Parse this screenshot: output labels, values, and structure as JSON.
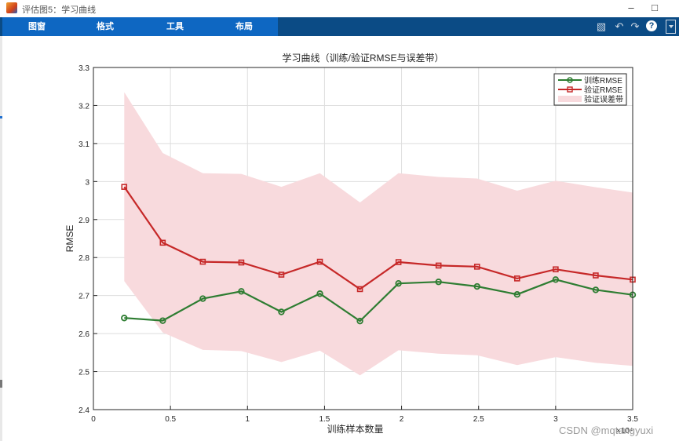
{
  "window": {
    "title": "评估图5：学习曲线"
  },
  "menu_tabs": [
    "图窗",
    "格式",
    "工具",
    "布局"
  ],
  "toolbar_icons": [
    "save-icon",
    "undo-icon",
    "redo-icon",
    "help-icon",
    "dropdown-icon"
  ],
  "colors": {
    "toolstrip": "#0b4b85",
    "tabs": "#0e67c2",
    "train": "#2e7d32",
    "val": "#c62828",
    "band": "#f8dadd"
  },
  "chart_data": {
    "type": "line",
    "title": "学习曲线（训练/验证RMSE与误差带）",
    "xlabel": "训练样本数量",
    "ylabel": "RMSE",
    "x_exponent_label": "×10⁴",
    "xlim": [
      0,
      3.5
    ],
    "ylim": [
      2.4,
      3.3
    ],
    "xticks": [
      0,
      0.5,
      1,
      1.5,
      2,
      2.5,
      3,
      3.5
    ],
    "xtick_labels": [
      "0",
      "0.5",
      "1",
      "1.5",
      "2",
      "2.5",
      "3",
      "3.5"
    ],
    "yticks": [
      2.4,
      2.5,
      2.6,
      2.7,
      2.8,
      2.9,
      3.0,
      3.1,
      3.2,
      3.3
    ],
    "ytick_labels": [
      "2.4",
      "2.5",
      "2.6",
      "2.7",
      "2.8",
      "2.9",
      "3",
      "3.1",
      "3.2",
      "3.3"
    ],
    "grid": true,
    "legend_position": "top-right",
    "x": [
      0.2,
      0.45,
      0.71,
      0.96,
      1.22,
      1.47,
      1.73,
      1.98,
      2.24,
      2.49,
      2.75,
      3.0,
      3.26,
      3.5
    ],
    "series": [
      {
        "name": "训练RMSE",
        "marker": "circle",
        "color": "#2e7d32",
        "values": [
          2.641,
          2.634,
          2.692,
          2.711,
          2.657,
          2.705,
          2.633,
          2.732,
          2.736,
          2.724,
          2.703,
          2.742,
          2.715,
          2.702
        ]
      },
      {
        "name": "验证RMSE",
        "marker": "square",
        "color": "#c62828",
        "values": [
          2.986,
          2.839,
          2.789,
          2.787,
          2.755,
          2.789,
          2.717,
          2.788,
          2.779,
          2.776,
          2.745,
          2.769,
          2.753,
          2.742
        ]
      }
    ],
    "error_band": {
      "name": "验证误差带",
      "color": "#f8dadd",
      "upper": [
        3.235,
        3.075,
        3.022,
        3.02,
        2.986,
        3.022,
        2.945,
        3.022,
        3.012,
        3.008,
        2.976,
        3.002,
        2.985,
        2.971
      ],
      "lower": [
        2.738,
        2.603,
        2.557,
        2.554,
        2.525,
        2.555,
        2.49,
        2.556,
        2.547,
        2.543,
        2.517,
        2.538,
        2.523,
        2.515
      ]
    }
  },
  "watermark": "CSDN @mqtangyuxi"
}
